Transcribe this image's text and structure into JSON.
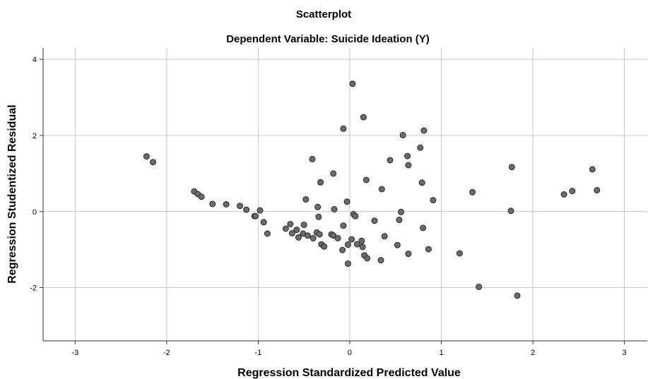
{
  "chart_data": {
    "type": "scatter",
    "title": "Scatterplot",
    "subtitle": "Dependent Variable: Suicide Ideation (Y)",
    "xlabel": "Regression Standardized Predicted Value",
    "ylabel": "Regression Studentized Residual",
    "xlim": [
      -3.35,
      3.25
    ],
    "ylim": [
      -3.4,
      4.3
    ],
    "xticks": [
      -3,
      -2,
      -1,
      0,
      1,
      2,
      3
    ],
    "yticks": [
      -2,
      0,
      2,
      4
    ],
    "grid": true,
    "marker_color": "#6b6b6b",
    "marker_edge_color": "#2a2a2a",
    "gridline_color": "#c8c8c8",
    "points": [
      [
        -2.22,
        1.45
      ],
      [
        -2.15,
        1.3
      ],
      [
        -1.7,
        0.53
      ],
      [
        -1.66,
        0.46
      ],
      [
        -1.62,
        0.39
      ],
      [
        -1.5,
        0.2
      ],
      [
        -1.35,
        0.19
      ],
      [
        -1.2,
        0.15
      ],
      [
        -1.13,
        0.05
      ],
      [
        -1.04,
        -0.12
      ],
      [
        -1.03,
        -0.12
      ],
      [
        -0.98,
        0.03
      ],
      [
        -0.94,
        -0.28
      ],
      [
        -0.9,
        -0.58
      ],
      [
        -0.7,
        -0.45
      ],
      [
        -0.65,
        -0.33
      ],
      [
        -0.63,
        -0.57
      ],
      [
        -0.58,
        -0.48
      ],
      [
        -0.56,
        -0.68
      ],
      [
        -0.51,
        -0.58
      ],
      [
        -0.5,
        -0.35
      ],
      [
        -0.48,
        0.32
      ],
      [
        -0.46,
        -0.63
      ],
      [
        -0.41,
        1.38
      ],
      [
        -0.4,
        -0.7
      ],
      [
        -0.36,
        -0.55
      ],
      [
        -0.35,
        0.12
      ],
      [
        -0.34,
        -0.14
      ],
      [
        -0.33,
        -0.6
      ],
      [
        -0.32,
        0.77
      ],
      [
        -0.31,
        -0.86
      ],
      [
        -0.28,
        -0.92
      ],
      [
        -0.2,
        -0.6
      ],
      [
        -0.18,
        -0.63
      ],
      [
        -0.18,
        1.0
      ],
      [
        -0.17,
        0.06
      ],
      [
        -0.13,
        -0.7
      ],
      [
        -0.08,
        -1.01
      ],
      [
        -0.07,
        -0.37
      ],
      [
        -0.07,
        2.18
      ],
      [
        -0.03,
        0.26
      ],
      [
        -0.02,
        -0.87
      ],
      [
        -0.02,
        -1.37
      ],
      [
        0.02,
        -0.73
      ],
      [
        0.03,
        3.36
      ],
      [
        0.04,
        -0.07
      ],
      [
        0.06,
        -0.12
      ],
      [
        0.08,
        -0.86
      ],
      [
        0.13,
        -0.77
      ],
      [
        0.14,
        -0.93
      ],
      [
        0.15,
        2.48
      ],
      [
        0.16,
        -1.15
      ],
      [
        0.18,
        0.83
      ],
      [
        0.19,
        -1.23
      ],
      [
        0.27,
        -0.24
      ],
      [
        0.34,
        -1.28
      ],
      [
        0.35,
        0.59
      ],
      [
        0.38,
        -0.65
      ],
      [
        0.44,
        1.35
      ],
      [
        0.52,
        -0.88
      ],
      [
        0.54,
        -0.22
      ],
      [
        0.56,
        -0.01
      ],
      [
        0.58,
        2.01
      ],
      [
        0.63,
        1.46
      ],
      [
        0.64,
        1.22
      ],
      [
        0.64,
        -1.11
      ],
      [
        0.77,
        1.68
      ],
      [
        0.79,
        0.76
      ],
      [
        0.8,
        -0.43
      ],
      [
        0.81,
        2.13
      ],
      [
        0.86,
        -0.99
      ],
      [
        0.91,
        0.3
      ],
      [
        1.2,
        -1.1
      ],
      [
        1.34,
        0.51
      ],
      [
        1.41,
        -1.98
      ],
      [
        1.76,
        0.02
      ],
      [
        1.77,
        1.17
      ],
      [
        1.83,
        -2.21
      ],
      [
        2.34,
        0.45
      ],
      [
        2.43,
        0.54
      ],
      [
        2.65,
        1.11
      ],
      [
        2.7,
        0.56
      ]
    ]
  }
}
